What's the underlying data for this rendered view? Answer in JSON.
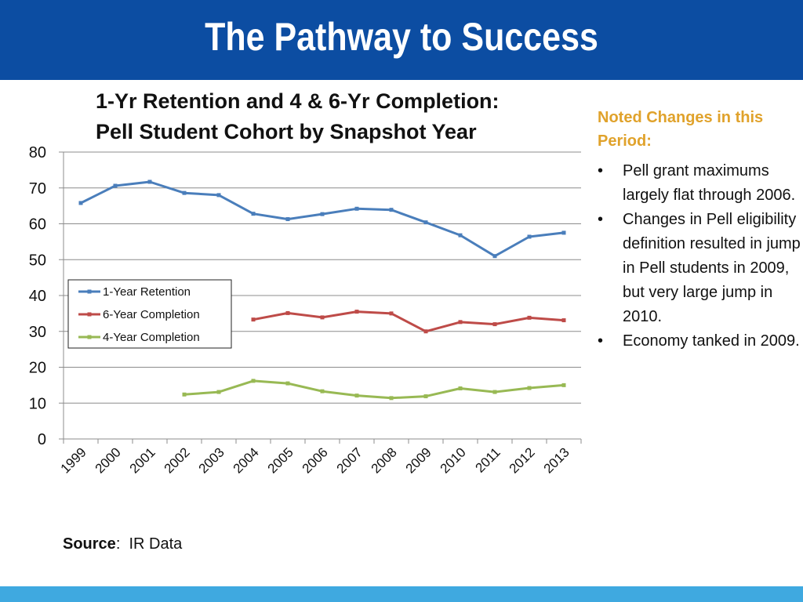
{
  "header": {
    "title": "The Pathway to Success",
    "color": "#0c4da2"
  },
  "chart_data": {
    "type": "line",
    "title_line1": "1-Yr Retention and 4 & 6-Yr Completion:",
    "title_line2": "Pell Student Cohort by Snapshot Year",
    "categories": [
      "1999",
      "2000",
      "2001",
      "2002",
      "2003",
      "2004",
      "2005",
      "2006",
      "2007",
      "2008",
      "2009",
      "2010",
      "2011",
      "2012",
      "2013"
    ],
    "ylim": [
      0,
      80
    ],
    "yticks": [
      0,
      10,
      20,
      30,
      40,
      50,
      60,
      70,
      80
    ],
    "grid": true,
    "legend_position": "left-middle",
    "series": [
      {
        "name": "1-Year Retention",
        "color": "#4a7ebb",
        "values": [
          65.8,
          70.6,
          71.7,
          68.6,
          68.0,
          62.8,
          61.3,
          62.7,
          64.2,
          63.9,
          60.4,
          56.8,
          51.0,
          56.4,
          57.5
        ]
      },
      {
        "name": "6-Year Completion",
        "color": "#be4b48",
        "values": [
          null,
          null,
          null,
          null,
          null,
          33.3,
          35.1,
          33.9,
          35.5,
          35.0,
          30.0,
          32.6,
          32.0,
          33.8,
          33.1
        ]
      },
      {
        "name": "4-Year Completion",
        "color": "#98b954",
        "values": [
          null,
          null,
          null,
          12.4,
          13.1,
          16.2,
          15.5,
          13.3,
          12.1,
          11.4,
          11.9,
          14.1,
          13.1,
          14.2,
          15.0
        ]
      }
    ]
  },
  "notes": {
    "heading": "Noted Changes in this Period:",
    "heading_color": "#e0a22b",
    "bullet": "•",
    "items": [
      "Pell grant maximums largely flat through 2006.",
      "Changes in Pell eligibility definition resulted in jump in Pell students in 2009, but very large jump in 2010.",
      "Economy tanked in 2009."
    ]
  },
  "source": {
    "label": "Source",
    "separator": ":",
    "text": "IR Data"
  },
  "footer": {
    "color": "#3fa9e0"
  }
}
